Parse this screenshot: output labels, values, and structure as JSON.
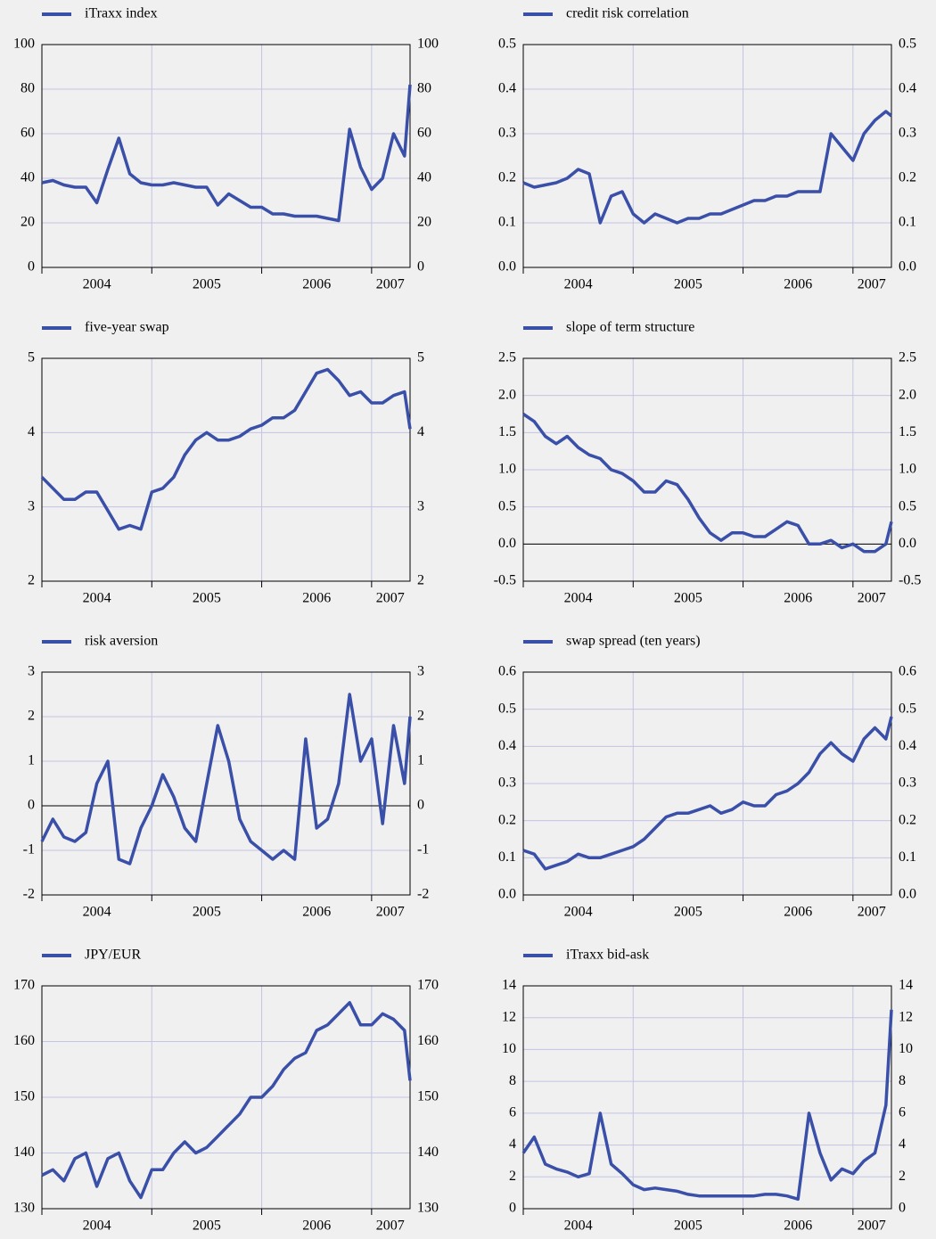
{
  "chart_data": [
    {
      "type": "line",
      "x": [
        2004.0,
        2004.1,
        2004.2,
        2004.3,
        2004.4,
        2004.5,
        2004.6,
        2004.7,
        2004.8,
        2004.9,
        2005.0,
        2005.1,
        2005.2,
        2005.3,
        2005.4,
        2005.5,
        2005.6,
        2005.7,
        2005.8,
        2005.9,
        2006.0,
        2006.1,
        2006.2,
        2006.3,
        2006.4,
        2006.5,
        2006.6,
        2006.7,
        2006.8,
        2006.9,
        2007.0,
        2007.1,
        2007.2,
        2007.3,
        2007.35
      ],
      "series": [
        {
          "name": "iTraxx index",
          "color": "#3a4fa8",
          "values": [
            38,
            39,
            37,
            36,
            36,
            29,
            44,
            58,
            42,
            38,
            37,
            37,
            38,
            37,
            36,
            36,
            28,
            33,
            30,
            27,
            27,
            24,
            24,
            23,
            23,
            23,
            22,
            21,
            62,
            45,
            35,
            40,
            60,
            50,
            82
          ]
        }
      ],
      "xlim": [
        2004,
        2007.35
      ],
      "xticks": [
        2004,
        2005,
        2006,
        2007
      ],
      "xticklabels": [
        {
          "value": 2004.5,
          "label": "2004"
        },
        {
          "value": 2005.5,
          "label": "2005"
        },
        {
          "value": 2006.5,
          "label": "2006"
        },
        {
          "value": 2007.17,
          "label": "2007"
        }
      ],
      "ylim": [
        0,
        100
      ],
      "yticks": [
        0,
        20,
        40,
        60,
        80,
        100
      ],
      "grid": true,
      "zero_line": false
    },
    {
      "type": "line",
      "x": [
        2004.0,
        2004.1,
        2004.2,
        2004.3,
        2004.4,
        2004.5,
        2004.6,
        2004.7,
        2004.8,
        2004.9,
        2005.0,
        2005.1,
        2005.2,
        2005.3,
        2005.4,
        2005.5,
        2005.6,
        2005.7,
        2005.8,
        2005.9,
        2006.0,
        2006.1,
        2006.2,
        2006.3,
        2006.4,
        2006.5,
        2006.6,
        2006.7,
        2006.8,
        2006.9,
        2007.0,
        2007.1,
        2007.2,
        2007.3,
        2007.35
      ],
      "series": [
        {
          "name": "credit risk correlation",
          "color": "#3a4fa8",
          "values": [
            0.19,
            0.18,
            0.185,
            0.19,
            0.2,
            0.22,
            0.21,
            0.1,
            0.16,
            0.17,
            0.12,
            0.1,
            0.12,
            0.11,
            0.1,
            0.11,
            0.11,
            0.12,
            0.12,
            0.13,
            0.14,
            0.15,
            0.15,
            0.16,
            0.16,
            0.17,
            0.17,
            0.17,
            0.3,
            0.27,
            0.24,
            0.3,
            0.33,
            0.35,
            0.34
          ]
        }
      ],
      "xlim": [
        2004,
        2007.35
      ],
      "xticks": [
        2004,
        2005,
        2006,
        2007
      ],
      "xticklabels": [
        {
          "value": 2004.5,
          "label": "2004"
        },
        {
          "value": 2005.5,
          "label": "2005"
        },
        {
          "value": 2006.5,
          "label": "2006"
        },
        {
          "value": 2007.17,
          "label": "2007"
        }
      ],
      "ylim": [
        0,
        0.5
      ],
      "yticks": [
        {
          "value": 0,
          "label": "0.0"
        },
        0.1,
        0.2,
        0.3,
        0.4,
        0.5
      ],
      "grid": true,
      "zero_line": false
    },
    {
      "type": "line",
      "x": [
        2004.0,
        2004.1,
        2004.2,
        2004.3,
        2004.4,
        2004.5,
        2004.6,
        2004.7,
        2004.8,
        2004.9,
        2005.0,
        2005.1,
        2005.2,
        2005.3,
        2005.4,
        2005.5,
        2005.6,
        2005.7,
        2005.8,
        2005.9,
        2006.0,
        2006.1,
        2006.2,
        2006.3,
        2006.4,
        2006.5,
        2006.6,
        2006.7,
        2006.8,
        2006.9,
        2007.0,
        2007.1,
        2007.2,
        2007.3,
        2007.35
      ],
      "series": [
        {
          "name": "five-year swap",
          "color": "#3a4fa8",
          "values": [
            3.4,
            3.25,
            3.1,
            3.1,
            3.2,
            3.2,
            2.95,
            2.7,
            2.75,
            2.7,
            3.2,
            3.25,
            3.4,
            3.7,
            3.9,
            4.0,
            3.9,
            3.9,
            3.95,
            4.05,
            4.1,
            4.2,
            4.2,
            4.3,
            4.55,
            4.8,
            4.85,
            4.7,
            4.5,
            4.55,
            4.4,
            4.4,
            4.5,
            4.55,
            4.05
          ]
        }
      ],
      "xlim": [
        2004,
        2007.35
      ],
      "xticks": [
        2004,
        2005,
        2006,
        2007
      ],
      "xticklabels": [
        {
          "value": 2004.5,
          "label": "2004"
        },
        {
          "value": 2005.5,
          "label": "2005"
        },
        {
          "value": 2006.5,
          "label": "2006"
        },
        {
          "value": 2007.17,
          "label": "2007"
        }
      ],
      "ylim": [
        2,
        5
      ],
      "yticks": [
        2,
        3,
        4,
        5
      ],
      "grid": true,
      "zero_line": false
    },
    {
      "type": "line",
      "x": [
        2004.0,
        2004.1,
        2004.2,
        2004.3,
        2004.4,
        2004.5,
        2004.6,
        2004.7,
        2004.8,
        2004.9,
        2005.0,
        2005.1,
        2005.2,
        2005.3,
        2005.4,
        2005.5,
        2005.6,
        2005.7,
        2005.8,
        2005.9,
        2006.0,
        2006.1,
        2006.2,
        2006.3,
        2006.4,
        2006.5,
        2006.6,
        2006.7,
        2006.8,
        2006.9,
        2007.0,
        2007.1,
        2007.2,
        2007.3,
        2007.35
      ],
      "series": [
        {
          "name": "slope of term structure",
          "color": "#3a4fa8",
          "values": [
            1.75,
            1.65,
            1.45,
            1.35,
            1.45,
            1.3,
            1.2,
            1.15,
            1.0,
            0.95,
            0.85,
            0.7,
            0.7,
            0.85,
            0.8,
            0.6,
            0.35,
            0.15,
            0.05,
            0.15,
            0.15,
            0.1,
            0.1,
            0.2,
            0.3,
            0.25,
            0.0,
            0.0,
            0.05,
            -0.05,
            0.0,
            -0.1,
            -0.1,
            0.0,
            0.3
          ]
        }
      ],
      "xlim": [
        2004,
        2007.35
      ],
      "xticks": [
        2004,
        2005,
        2006,
        2007
      ],
      "xticklabels": [
        {
          "value": 2004.5,
          "label": "2004"
        },
        {
          "value": 2005.5,
          "label": "2005"
        },
        {
          "value": 2006.5,
          "label": "2006"
        },
        {
          "value": 2007.17,
          "label": "2007"
        }
      ],
      "ylim": [
        -0.5,
        2.5
      ],
      "yticks": [
        -0.5,
        {
          "value": 0,
          "label": "0.0"
        },
        0.5,
        {
          "value": 1,
          "label": "1.0"
        },
        1.5,
        {
          "value": 2,
          "label": "2.0"
        },
        2.5
      ],
      "grid": true,
      "zero_line": true
    },
    {
      "type": "line",
      "x": [
        2004.0,
        2004.1,
        2004.2,
        2004.3,
        2004.4,
        2004.5,
        2004.6,
        2004.7,
        2004.8,
        2004.9,
        2005.0,
        2005.1,
        2005.2,
        2005.3,
        2005.4,
        2005.5,
        2005.6,
        2005.7,
        2005.8,
        2005.9,
        2006.0,
        2006.1,
        2006.2,
        2006.3,
        2006.4,
        2006.5,
        2006.6,
        2006.7,
        2006.8,
        2006.9,
        2007.0,
        2007.1,
        2007.2,
        2007.3,
        2007.35
      ],
      "series": [
        {
          "name": "risk aversion",
          "color": "#3a4fa8",
          "values": [
            -0.8,
            -0.3,
            -0.7,
            -0.8,
            -0.6,
            0.5,
            1.0,
            -1.2,
            -1.3,
            -0.5,
            0.0,
            0.7,
            0.2,
            -0.5,
            -0.8,
            0.5,
            1.8,
            1.0,
            -0.3,
            -0.8,
            -1.0,
            -1.2,
            -1.0,
            -1.2,
            1.5,
            -0.5,
            -0.3,
            0.5,
            2.5,
            1.0,
            1.5,
            -0.4,
            1.8,
            0.5,
            2.0
          ]
        }
      ],
      "xlim": [
        2004,
        2007.35
      ],
      "xticks": [
        2004,
        2005,
        2006,
        2007
      ],
      "xticklabels": [
        {
          "value": 2004.5,
          "label": "2004"
        },
        {
          "value": 2005.5,
          "label": "2005"
        },
        {
          "value": 2006.5,
          "label": "2006"
        },
        {
          "value": 2007.17,
          "label": "2007"
        }
      ],
      "ylim": [
        -2,
        3
      ],
      "yticks": [
        -2,
        -1,
        0,
        1,
        2,
        3
      ],
      "grid": true,
      "zero_line": true
    },
    {
      "type": "line",
      "x": [
        2004.0,
        2004.1,
        2004.2,
        2004.3,
        2004.4,
        2004.5,
        2004.6,
        2004.7,
        2004.8,
        2004.9,
        2005.0,
        2005.1,
        2005.2,
        2005.3,
        2005.4,
        2005.5,
        2005.6,
        2005.7,
        2005.8,
        2005.9,
        2006.0,
        2006.1,
        2006.2,
        2006.3,
        2006.4,
        2006.5,
        2006.6,
        2006.7,
        2006.8,
        2006.9,
        2007.0,
        2007.1,
        2007.2,
        2007.3,
        2007.35
      ],
      "series": [
        {
          "name": "swap spread (ten years)",
          "color": "#3a4fa8",
          "values": [
            0.12,
            0.11,
            0.07,
            0.08,
            0.09,
            0.11,
            0.1,
            0.1,
            0.11,
            0.12,
            0.13,
            0.15,
            0.18,
            0.21,
            0.22,
            0.22,
            0.23,
            0.24,
            0.22,
            0.23,
            0.25,
            0.24,
            0.24,
            0.27,
            0.28,
            0.3,
            0.33,
            0.38,
            0.41,
            0.38,
            0.36,
            0.42,
            0.45,
            0.42,
            0.48
          ]
        }
      ],
      "xlim": [
        2004,
        2007.35
      ],
      "xticks": [
        2004,
        2005,
        2006,
        2007
      ],
      "xticklabels": [
        {
          "value": 2004.5,
          "label": "2004"
        },
        {
          "value": 2005.5,
          "label": "2005"
        },
        {
          "value": 2006.5,
          "label": "2006"
        },
        {
          "value": 2007.17,
          "label": "2007"
        }
      ],
      "ylim": [
        0,
        0.6
      ],
      "yticks": [
        {
          "value": 0,
          "label": "0.0"
        },
        0.1,
        0.2,
        0.3,
        0.4,
        0.5,
        0.6
      ],
      "grid": true,
      "zero_line": false
    },
    {
      "type": "line",
      "x": [
        2004.0,
        2004.1,
        2004.2,
        2004.3,
        2004.4,
        2004.5,
        2004.6,
        2004.7,
        2004.8,
        2004.9,
        2005.0,
        2005.1,
        2005.2,
        2005.3,
        2005.4,
        2005.5,
        2005.6,
        2005.7,
        2005.8,
        2005.9,
        2006.0,
        2006.1,
        2006.2,
        2006.3,
        2006.4,
        2006.5,
        2006.6,
        2006.7,
        2006.8,
        2006.9,
        2007.0,
        2007.1,
        2007.2,
        2007.3,
        2007.35
      ],
      "series": [
        {
          "name": "JPY/EUR",
          "color": "#3a4fa8",
          "values": [
            136,
            137,
            135,
            139,
            140,
            134,
            139,
            140,
            135,
            132,
            137,
            137,
            140,
            142,
            140,
            141,
            143,
            145,
            147,
            150,
            150,
            152,
            155,
            157,
            158,
            162,
            163,
            165,
            167,
            163,
            163,
            165,
            164,
            162,
            153
          ]
        }
      ],
      "xlim": [
        2004,
        2007.35
      ],
      "xticks": [
        2004,
        2005,
        2006,
        2007
      ],
      "xticklabels": [
        {
          "value": 2004.5,
          "label": "2004"
        },
        {
          "value": 2005.5,
          "label": "2005"
        },
        {
          "value": 2006.5,
          "label": "2006"
        },
        {
          "value": 2007.17,
          "label": "2007"
        }
      ],
      "ylim": [
        130,
        170
      ],
      "yticks": [
        130,
        140,
        150,
        160,
        170
      ],
      "grid": true,
      "zero_line": false
    },
    {
      "type": "line",
      "x": [
        2004.0,
        2004.1,
        2004.2,
        2004.3,
        2004.4,
        2004.5,
        2004.6,
        2004.7,
        2004.8,
        2004.9,
        2005.0,
        2005.1,
        2005.2,
        2005.3,
        2005.4,
        2005.5,
        2005.6,
        2005.7,
        2005.8,
        2005.9,
        2006.0,
        2006.1,
        2006.2,
        2006.3,
        2006.4,
        2006.5,
        2006.6,
        2006.7,
        2006.8,
        2006.9,
        2007.0,
        2007.1,
        2007.2,
        2007.3,
        2007.35
      ],
      "series": [
        {
          "name": "iTraxx bid-ask",
          "color": "#3a4fa8",
          "values": [
            3.5,
            4.5,
            2.8,
            2.5,
            2.3,
            2.0,
            2.2,
            6.0,
            2.8,
            2.2,
            1.5,
            1.2,
            1.3,
            1.2,
            1.1,
            0.9,
            0.8,
            0.8,
            0.8,
            0.8,
            0.8,
            0.8,
            0.9,
            0.9,
            0.8,
            0.6,
            6.0,
            3.5,
            1.8,
            2.5,
            2.2,
            3.0,
            3.5,
            6.5,
            12.5
          ]
        }
      ],
      "xlim": [
        2004,
        2007.35
      ],
      "xticks": [
        2004,
        2005,
        2006,
        2007
      ],
      "xticklabels": [
        {
          "value": 2004.5,
          "label": "2004"
        },
        {
          "value": 2005.5,
          "label": "2005"
        },
        {
          "value": 2006.5,
          "label": "2006"
        },
        {
          "value": 2007.17,
          "label": "2007"
        }
      ],
      "ylim": [
        0,
        14
      ],
      "yticks": [
        0,
        2,
        4,
        6,
        8,
        10,
        12,
        14
      ],
      "grid": true,
      "zero_line": false
    }
  ]
}
